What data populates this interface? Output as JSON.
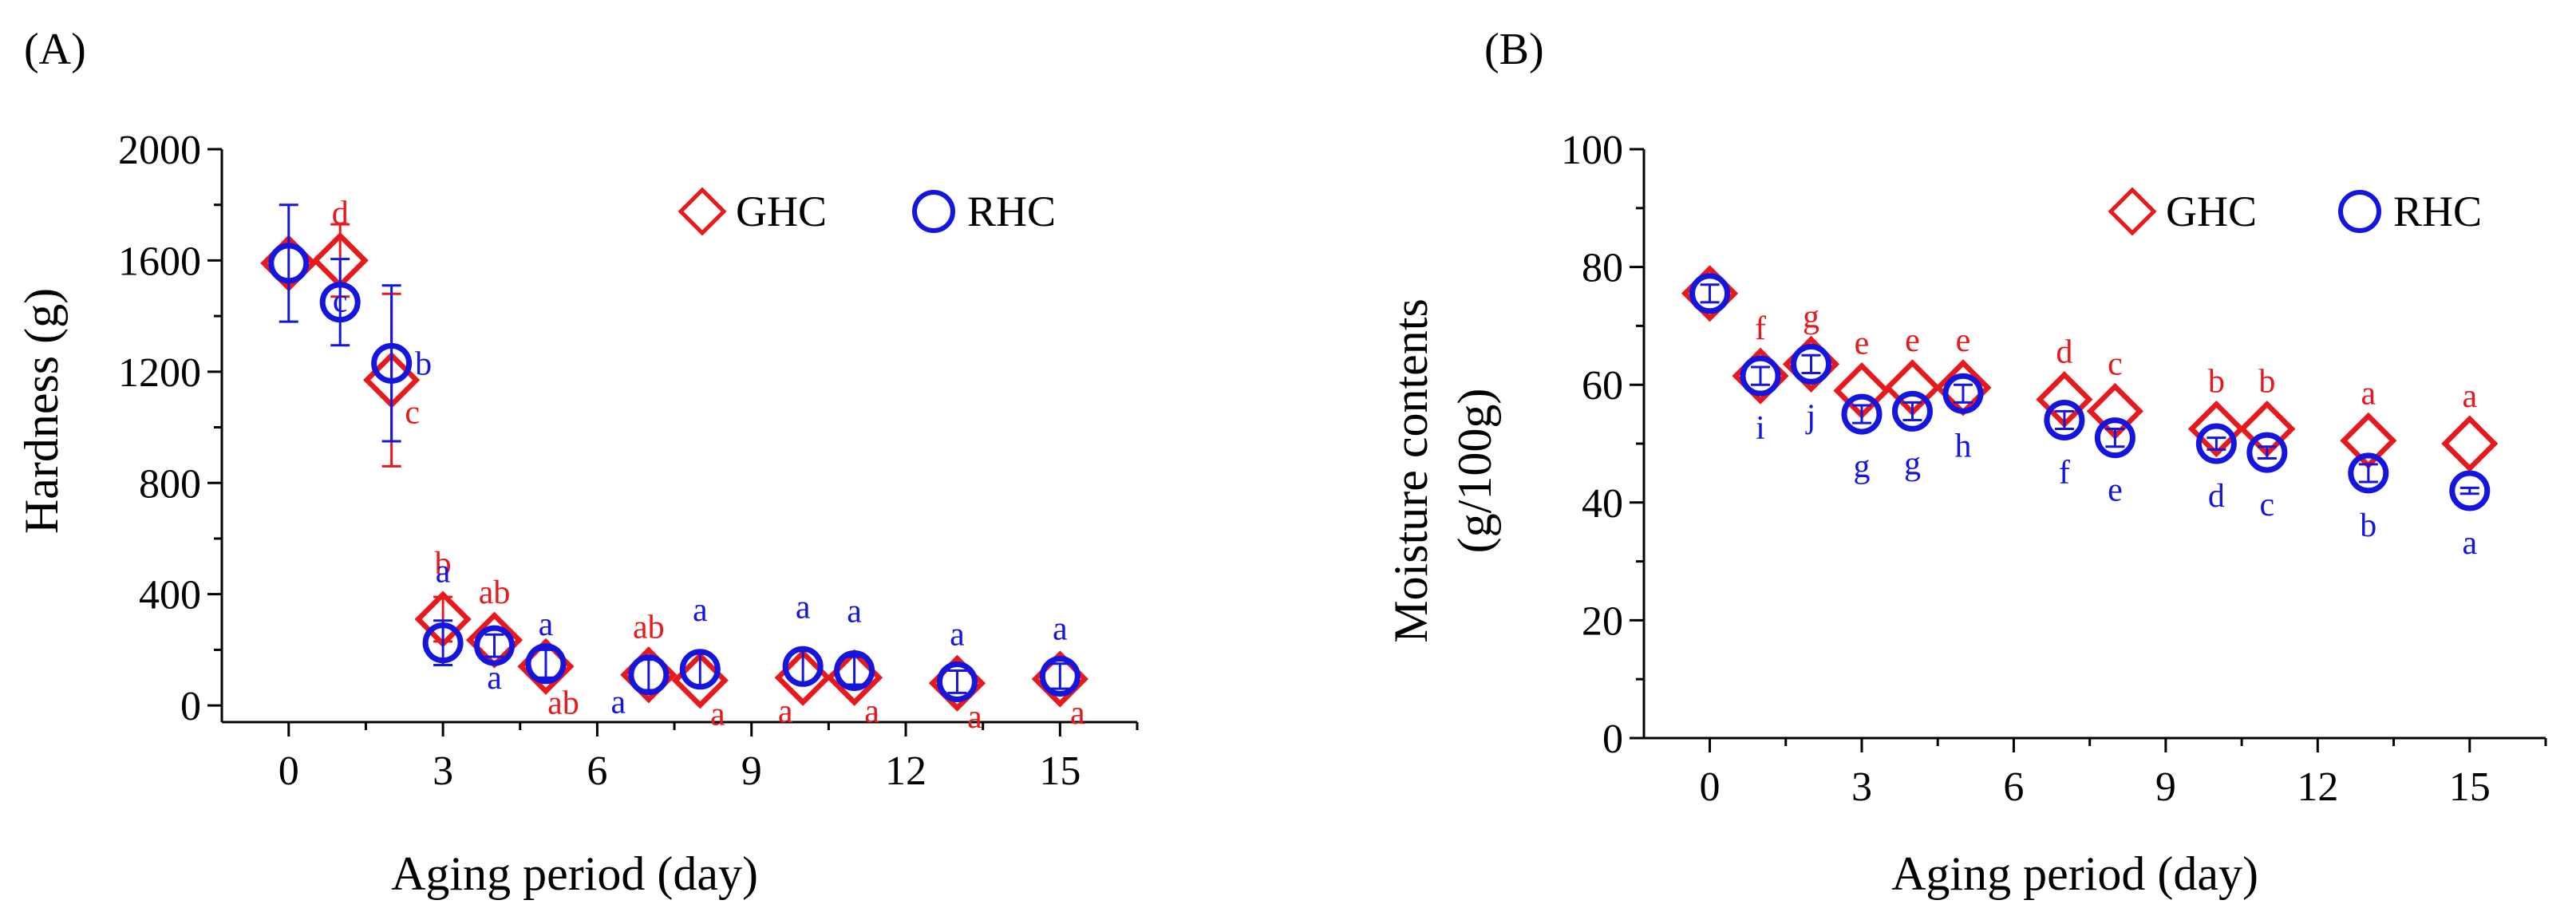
{
  "colors": {
    "ghc": "#e8191c",
    "rhc": "#1515e0",
    "axis": "#000000"
  },
  "chart_data": [
    {
      "type": "scatter",
      "panel_label": "(A)",
      "xlabel": "Aging period (day)",
      "ylabel": "Hardness (g)",
      "xlim": [
        -1.3,
        16.5
      ],
      "ylim": [
        -60,
        2000
      ],
      "xticks": [
        0,
        3,
        6,
        9,
        12,
        15
      ],
      "xtick_labels": [
        "0",
        "3",
        "6",
        "9",
        "12",
        "15"
      ],
      "yticks": [
        0,
        400,
        800,
        1200,
        1600,
        2000
      ],
      "ytick_labels": [
        "0",
        "400",
        "800",
        "1200",
        "1600",
        "2000"
      ],
      "legend": {
        "position": "top-right",
        "entries": [
          "GHC",
          "RHC"
        ]
      },
      "series": [
        {
          "name": "GHC",
          "marker": "diamond",
          "x": [
            0,
            1,
            2,
            3,
            4,
            5,
            7,
            8,
            10,
            11,
            13,
            15
          ],
          "y": [
            1590,
            1600,
            1170,
            310,
            235,
            140,
            110,
            90,
            100,
            100,
            80,
            95
          ],
          "err": [
            0,
            130,
            310,
            80,
            0,
            0,
            0,
            0,
            0,
            0,
            0,
            0
          ],
          "labels": [
            "",
            "d",
            "c",
            "b",
            "ab",
            "ab",
            "ab",
            "a",
            "a",
            "a",
            "a",
            "a"
          ]
        },
        {
          "name": "RHC",
          "marker": "circle",
          "x": [
            0,
            1,
            2,
            3,
            4,
            5,
            7,
            8,
            10,
            11,
            13,
            15
          ],
          "y": [
            1590,
            1450,
            1230,
            225,
            215,
            150,
            110,
            130,
            140,
            125,
            85,
            105
          ],
          "err": [
            210,
            155,
            280,
            80,
            40,
            50,
            55,
            60,
            60,
            50,
            40,
            45
          ],
          "labels": [
            "",
            "c",
            "b",
            "a",
            "a",
            "a",
            "a",
            "a",
            "a",
            "a",
            "a",
            "a"
          ]
        }
      ]
    },
    {
      "type": "scatter",
      "panel_label": "(B)",
      "xlabel": "Aging period (day)",
      "ylabel": "Moisture contents",
      "ylabel2": "(g/100g)",
      "xlim": [
        -1.3,
        16.5
      ],
      "ylim": [
        0,
        100
      ],
      "xticks": [
        0,
        3,
        6,
        9,
        12,
        15
      ],
      "xtick_labels": [
        "0",
        "3",
        "6",
        "9",
        "12",
        "15"
      ],
      "yticks": [
        0,
        20,
        40,
        60,
        80,
        100
      ],
      "ytick_labels": [
        "0",
        "20",
        "40",
        "60",
        "80",
        "100"
      ],
      "legend": {
        "position": "top-right",
        "entries": [
          "GHC",
          "RHC"
        ]
      },
      "series": [
        {
          "name": "GHC",
          "marker": "diamond",
          "x": [
            0,
            1,
            2,
            3,
            4,
            5,
            7,
            8,
            10,
            11,
            13,
            15
          ],
          "y": [
            75.5,
            61.5,
            63.5,
            59,
            59.5,
            59.5,
            57.5,
            55.5,
            52.5,
            52.5,
            50.5,
            50
          ],
          "err": [
            0,
            0,
            0,
            0,
            0,
            0,
            0,
            0,
            0,
            0,
            0,
            0
          ],
          "labels": [
            "",
            "f",
            "g",
            "e",
            "e",
            "e",
            "d",
            "c",
            "b",
            "b",
            "a",
            "a"
          ]
        },
        {
          "name": "RHC",
          "marker": "circle",
          "x": [
            0,
            1,
            2,
            3,
            4,
            5,
            7,
            8,
            10,
            11,
            13,
            15
          ],
          "y": [
            75.5,
            61.5,
            63.5,
            55,
            55.5,
            58.5,
            54,
            51,
            50,
            48.5,
            45,
            42
          ],
          "err": [
            1.5,
            1.5,
            1.5,
            1.5,
            1.5,
            1.5,
            1.5,
            1.5,
            1.0,
            1.0,
            1.5,
            0.5
          ],
          "labels": [
            "",
            "i",
            "j",
            "g",
            "g",
            "h",
            "f",
            "e",
            "d",
            "c",
            "b",
            "a"
          ]
        }
      ]
    }
  ]
}
